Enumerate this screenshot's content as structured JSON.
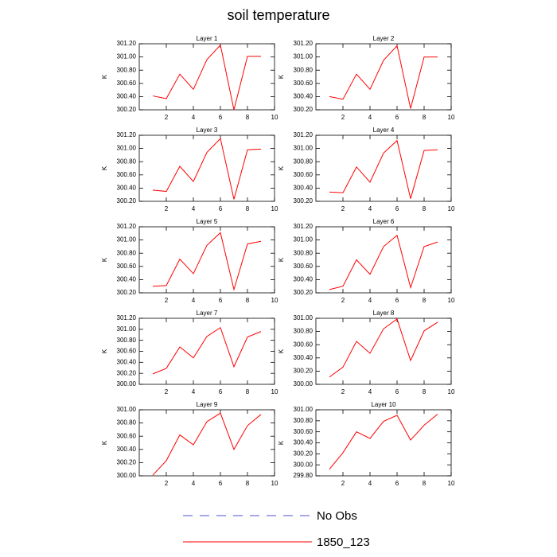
{
  "title": "soil temperature",
  "legend": [
    {
      "name": "No Obs",
      "color": "#5050c8",
      "dash": true
    },
    {
      "name": "1850_123",
      "color": "#ff0000",
      "dash": false
    }
  ],
  "chart_data": [
    {
      "type": "line",
      "title": "Layer 1",
      "ylabel": "K",
      "color": "#ff0000",
      "x": [
        1,
        2,
        3,
        4,
        5,
        6,
        7,
        8,
        9
      ],
      "values": [
        300.41,
        300.37,
        300.74,
        300.51,
        300.96,
        301.18,
        300.2,
        301.01,
        301.01
      ],
      "xlim": [
        0,
        10
      ],
      "xticks": [
        2,
        4,
        6,
        8,
        10
      ],
      "ylim": [
        300.2,
        301.2
      ],
      "yticks": [
        {
          "value": 300.2,
          "label": "300.20"
        },
        {
          "value": 300.4,
          "label": "300.40"
        },
        {
          "value": 300.6,
          "label": "300.60"
        },
        {
          "value": 300.8,
          "label": "300.80"
        },
        {
          "value": 301.0,
          "label": "301.00"
        },
        {
          "value": 301.2,
          "label": "301.20"
        }
      ]
    },
    {
      "type": "line",
      "title": "Layer 2",
      "ylabel": "K",
      "color": "#ff0000",
      "x": [
        1,
        2,
        3,
        4,
        5,
        6,
        7,
        8,
        9
      ],
      "values": [
        300.4,
        300.36,
        300.74,
        300.51,
        300.95,
        301.17,
        300.22,
        301.0,
        301.0
      ],
      "xlim": [
        0,
        10
      ],
      "xticks": [
        2,
        4,
        6,
        8,
        10
      ],
      "ylim": [
        300.2,
        301.2
      ],
      "yticks": [
        {
          "value": 300.2,
          "label": "300.20"
        },
        {
          "value": 300.4,
          "label": "300.40"
        },
        {
          "value": 300.6,
          "label": "300.60"
        },
        {
          "value": 300.8,
          "label": "300.80"
        },
        {
          "value": 301.0,
          "label": "301.00"
        },
        {
          "value": 301.2,
          "label": "301.20"
        }
      ]
    },
    {
      "type": "line",
      "title": "Layer 3",
      "ylabel": "K",
      "color": "#ff0000",
      "x": [
        1,
        2,
        3,
        4,
        5,
        6,
        7,
        8,
        9
      ],
      "values": [
        300.37,
        300.35,
        300.73,
        300.5,
        300.94,
        301.15,
        300.23,
        300.98,
        300.99
      ],
      "xlim": [
        0,
        10
      ],
      "xticks": [
        2,
        4,
        6,
        8,
        10
      ],
      "ylim": [
        300.2,
        301.2
      ],
      "yticks": [
        {
          "value": 300.2,
          "label": "300.20"
        },
        {
          "value": 300.4,
          "label": "300.40"
        },
        {
          "value": 300.6,
          "label": "300.60"
        },
        {
          "value": 300.8,
          "label": "300.80"
        },
        {
          "value": 301.0,
          "label": "301.00"
        },
        {
          "value": 301.2,
          "label": "301.20"
        }
      ]
    },
    {
      "type": "line",
      "title": "Layer 4",
      "ylabel": "K",
      "color": "#ff0000",
      "x": [
        1,
        2,
        3,
        4,
        5,
        6,
        7,
        8,
        9
      ],
      "values": [
        300.34,
        300.33,
        300.72,
        300.49,
        300.93,
        301.12,
        300.24,
        300.97,
        300.98
      ],
      "xlim": [
        0,
        10
      ],
      "xticks": [
        2,
        4,
        6,
        8,
        10
      ],
      "ylim": [
        300.2,
        301.2
      ],
      "yticks": [
        {
          "value": 300.2,
          "label": "300.20"
        },
        {
          "value": 300.4,
          "label": "300.40"
        },
        {
          "value": 300.6,
          "label": "300.60"
        },
        {
          "value": 300.8,
          "label": "300.80"
        },
        {
          "value": 301.0,
          "label": "301.00"
        },
        {
          "value": 301.2,
          "label": "301.20"
        }
      ]
    },
    {
      "type": "line",
      "title": "Layer 5",
      "ylabel": "K",
      "color": "#ff0000",
      "x": [
        1,
        2,
        3,
        4,
        5,
        6,
        7,
        8,
        9
      ],
      "values": [
        300.3,
        300.31,
        300.71,
        300.49,
        300.92,
        301.11,
        300.25,
        300.94,
        300.98
      ],
      "xlim": [
        0,
        10
      ],
      "xticks": [
        2,
        4,
        6,
        8,
        10
      ],
      "ylim": [
        300.2,
        301.2
      ],
      "yticks": [
        {
          "value": 300.2,
          "label": "300.20"
        },
        {
          "value": 300.4,
          "label": "300.40"
        },
        {
          "value": 300.6,
          "label": "300.60"
        },
        {
          "value": 300.8,
          "label": "300.80"
        },
        {
          "value": 301.0,
          "label": "301.00"
        },
        {
          "value": 301.2,
          "label": "301.20"
        }
      ]
    },
    {
      "type": "line",
      "title": "Layer 6",
      "ylabel": "K",
      "color": "#ff0000",
      "x": [
        1,
        2,
        3,
        4,
        5,
        6,
        7,
        8,
        9
      ],
      "values": [
        300.25,
        300.3,
        300.7,
        300.48,
        300.9,
        301.07,
        300.28,
        300.9,
        300.97
      ],
      "xlim": [
        0,
        10
      ],
      "xticks": [
        2,
        4,
        6,
        8,
        10
      ],
      "ylim": [
        300.2,
        301.2
      ],
      "yticks": [
        {
          "value": 300.2,
          "label": "300.20"
        },
        {
          "value": 300.4,
          "label": "300.40"
        },
        {
          "value": 300.6,
          "label": "300.60"
        },
        {
          "value": 300.8,
          "label": "300.80"
        },
        {
          "value": 301.0,
          "label": "301.00"
        },
        {
          "value": 301.2,
          "label": "301.20"
        }
      ]
    },
    {
      "type": "line",
      "title": "Layer 7",
      "ylabel": "K",
      "color": "#ff0000",
      "x": [
        1,
        2,
        3,
        4,
        5,
        6,
        7,
        8,
        9
      ],
      "values": [
        300.19,
        300.29,
        300.68,
        300.48,
        300.87,
        301.03,
        300.32,
        300.86,
        300.96
      ],
      "xlim": [
        0,
        10
      ],
      "xticks": [
        2,
        4,
        6,
        8,
        10
      ],
      "ylim": [
        300.0,
        301.2
      ],
      "yticks": [
        {
          "value": 300.0,
          "label": "300.00"
        },
        {
          "value": 300.2,
          "label": "300.20"
        },
        {
          "value": 300.4,
          "label": "300.40"
        },
        {
          "value": 300.6,
          "label": "300.60"
        },
        {
          "value": 300.8,
          "label": "300.80"
        },
        {
          "value": 301.0,
          "label": "301.00"
        },
        {
          "value": 301.2,
          "label": "301.20"
        }
      ]
    },
    {
      "type": "line",
      "title": "Layer 8",
      "ylabel": "K",
      "color": "#ff0000",
      "x": [
        1,
        2,
        3,
        4,
        5,
        6,
        7,
        8,
        9
      ],
      "values": [
        300.11,
        300.26,
        300.65,
        300.47,
        300.84,
        300.99,
        300.36,
        300.81,
        300.94
      ],
      "xlim": [
        0,
        10
      ],
      "xticks": [
        2,
        4,
        6,
        8,
        10
      ],
      "ylim": [
        300.0,
        301.0
      ],
      "yticks": [
        {
          "value": 300.0,
          "label": "300.00"
        },
        {
          "value": 300.2,
          "label": "300.20"
        },
        {
          "value": 300.4,
          "label": "300.40"
        },
        {
          "value": 300.6,
          "label": "300.60"
        },
        {
          "value": 300.8,
          "label": "300.80"
        },
        {
          "value": 301.0,
          "label": "301.00"
        }
      ]
    },
    {
      "type": "line",
      "title": "Layer 9",
      "ylabel": "K",
      "color": "#ff0000",
      "x": [
        1,
        2,
        3,
        4,
        5,
        6,
        7,
        8,
        9
      ],
      "values": [
        300.01,
        300.23,
        300.62,
        300.47,
        300.82,
        300.95,
        300.4,
        300.76,
        300.93
      ],
      "xlim": [
        0,
        10
      ],
      "xticks": [
        2,
        4,
        6,
        8,
        10
      ],
      "ylim": [
        300.0,
        301.0
      ],
      "yticks": [
        {
          "value": 300.0,
          "label": "300.00"
        },
        {
          "value": 300.2,
          "label": "300.20"
        },
        {
          "value": 300.4,
          "label": "300.40"
        },
        {
          "value": 300.6,
          "label": "300.60"
        },
        {
          "value": 300.8,
          "label": "300.80"
        },
        {
          "value": 301.0,
          "label": "301.00"
        }
      ]
    },
    {
      "type": "line",
      "title": "Layer 10",
      "ylabel": "K",
      "color": "#ff0000",
      "x": [
        1,
        2,
        3,
        4,
        5,
        6,
        7,
        8,
        9
      ],
      "values": [
        299.92,
        300.22,
        300.6,
        300.48,
        300.79,
        300.9,
        300.45,
        300.72,
        300.92
      ],
      "xlim": [
        0,
        10
      ],
      "xticks": [
        2,
        4,
        6,
        8,
        10
      ],
      "ylim": [
        299.8,
        301.0
      ],
      "yticks": [
        {
          "value": 299.8,
          "label": "299.80"
        },
        {
          "value": 300.0,
          "label": "300.00"
        },
        {
          "value": 300.2,
          "label": "300.20"
        },
        {
          "value": 300.4,
          "label": "300.40"
        },
        {
          "value": 300.6,
          "label": "300.60"
        },
        {
          "value": 300.8,
          "label": "300.80"
        },
        {
          "value": 301.0,
          "label": "301.00"
        }
      ]
    }
  ]
}
